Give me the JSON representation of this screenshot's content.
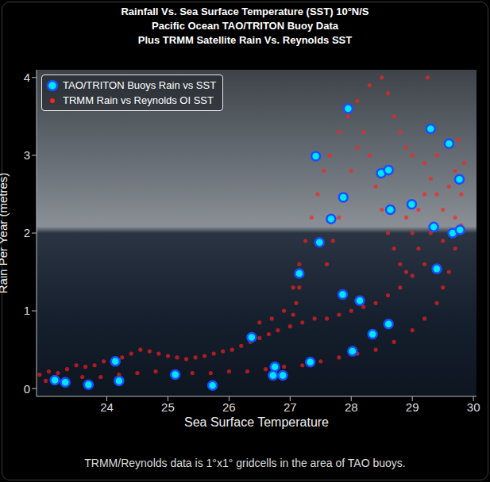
{
  "chart_data": {
    "type": "scatter",
    "title": "Rainfall Vs. Sea Surface Temperature (SST) 10°N/S",
    "subtitle": [
      "Pacific Ocean TAO/TRITON Buoy Data",
      "Plus TRMM Satellite Rain Vs. Reynolds SST"
    ],
    "x_label": "Sea Surface Temperature",
    "y_label": "Rain Per Year (metres)",
    "annotation": "TRMM/Reynolds data is 1°x1° gridcells in the area of TAO buoys.",
    "xlim": [
      22.85,
      30.05
    ],
    "xticks": [
      24,
      25,
      26,
      27,
      28,
      29,
      30
    ],
    "ylim": [
      -0.1,
      4.1
    ],
    "yticks": [
      0,
      1,
      2,
      3,
      4
    ],
    "grid": false,
    "legend": "upper left",
    "series": [
      {
        "name": "TAO/TRITON Buoys Rain vs SST",
        "color": "#00e5ff",
        "marker": "circle",
        "x": [
          23.15,
          23.32,
          23.7,
          24.14,
          24.2,
          25.12,
          25.73,
          26.37,
          26.75,
          26.72,
          26.88,
          27.33,
          27.15,
          27.42,
          27.48,
          27.67,
          27.87,
          27.86,
          27.95,
          28.02,
          28.14,
          28.35,
          28.49,
          28.61,
          28.61,
          28.64,
          28.99,
          29.3,
          29.35,
          29.4,
          29.6,
          29.66,
          29.78,
          29.77
        ],
        "values": [
          0.11,
          0.08,
          0.05,
          0.35,
          0.1,
          0.18,
          0.04,
          0.66,
          0.28,
          0.17,
          0.17,
          0.34,
          1.48,
          2.99,
          1.88,
          2.18,
          2.46,
          1.21,
          3.6,
          0.48,
          1.13,
          0.7,
          2.77,
          2.81,
          0.83,
          2.3,
          2.37,
          3.34,
          2.08,
          1.54,
          3.15,
          2.0,
          2.04,
          2.69
        ]
      },
      {
        "name": "TRMM Rain vs Reynolds OI SST",
        "color": "#ff2020",
        "marker": "circle",
        "x": [
          22.9,
          23.05,
          23.2,
          23.35,
          23.5,
          23.65,
          23.8,
          23.95,
          24.1,
          24.25,
          24.4,
          24.55,
          24.7,
          24.85,
          25.0,
          25.15,
          25.3,
          25.45,
          25.6,
          25.75,
          25.9,
          26.05,
          26.2,
          26.35,
          26.5,
          26.65,
          23.0,
          23.3,
          23.6,
          23.9,
          24.2,
          24.5,
          24.8,
          25.1,
          25.4,
          25.7,
          26.0,
          26.3,
          26.6,
          26.9,
          27.2,
          27.5,
          27.8,
          28.1,
          28.4,
          28.7,
          29.0,
          29.2,
          29.4,
          29.5,
          29.6,
          29.7,
          29.8,
          26.8,
          27.0,
          27.2,
          27.4,
          27.6,
          27.8,
          28.0,
          28.2,
          28.4,
          28.6,
          28.8,
          29.0,
          29.2,
          27.05,
          27.15,
          27.25,
          27.35,
          27.45,
          27.55,
          27.65,
          27.8,
          27.95,
          28.1,
          28.3,
          28.5,
          28.6,
          28.7,
          28.8,
          28.9,
          29.0,
          29.2,
          29.4,
          29.6,
          29.75,
          27.6,
          27.7,
          27.8,
          27.9,
          28.0,
          28.1,
          28.2,
          28.3,
          28.4,
          28.5,
          28.6,
          28.7,
          28.8,
          28.9,
          29.0,
          29.1,
          29.2,
          29.3,
          29.4,
          29.5,
          29.6,
          29.7,
          29.8,
          29.85,
          29.3,
          29.5,
          29.1,
          28.9,
          29.7,
          29.25,
          27.1,
          27.15,
          27.05,
          26.9,
          26.5,
          26.7
        ],
        "values": [
          0.18,
          0.22,
          0.2,
          0.25,
          0.3,
          0.28,
          0.3,
          0.35,
          0.32,
          0.4,
          0.45,
          0.5,
          0.48,
          0.45,
          0.42,
          0.4,
          0.38,
          0.4,
          0.42,
          0.45,
          0.48,
          0.5,
          0.55,
          0.6,
          0.65,
          0.7,
          0.1,
          0.12,
          0.15,
          0.15,
          0.18,
          0.2,
          0.22,
          0.2,
          0.2,
          0.2,
          0.22,
          0.22,
          0.25,
          0.28,
          0.3,
          0.35,
          0.4,
          0.45,
          0.5,
          0.6,
          0.75,
          0.9,
          1.1,
          1.3,
          1.5,
          1.8,
          2.1,
          0.75,
          0.8,
          0.85,
          0.9,
          0.9,
          0.95,
          1.0,
          1.05,
          1.1,
          1.2,
          1.3,
          1.45,
          1.6,
          1.3,
          1.6,
          1.9,
          2.2,
          2.5,
          2.8,
          3.0,
          3.3,
          3.5,
          3.7,
          3.9,
          4.0,
          3.8,
          3.5,
          3.3,
          3.1,
          3.0,
          2.9,
          3.0,
          3.1,
          3.2,
          1.6,
          1.9,
          2.2,
          2.5,
          2.8,
          3.1,
          3.3,
          3.0,
          2.6,
          2.3,
          2.0,
          1.8,
          1.6,
          1.5,
          2.0,
          2.3,
          2.5,
          2.7,
          2.5,
          2.3,
          2.6,
          2.8,
          2.5,
          2.9,
          2.0,
          1.9,
          1.8,
          2.2,
          2.2,
          4.0,
          1.1,
          1.3,
          0.95,
          1.0,
          0.85,
          0.9
        ]
      }
    ]
  }
}
